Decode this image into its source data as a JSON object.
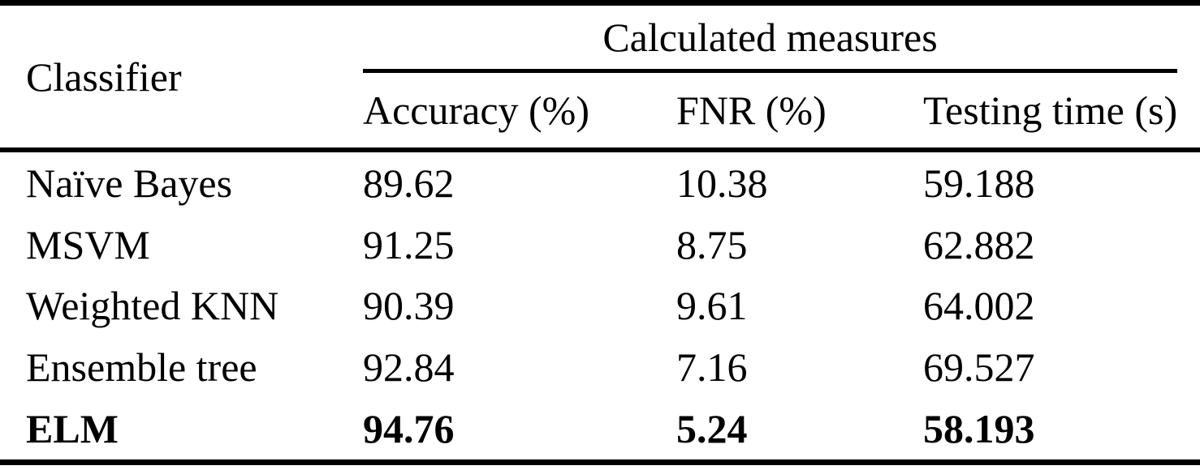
{
  "table": {
    "header": {
      "classifier_label": "Classifier",
      "group_label": "Calculated measures",
      "columns": [
        "Accuracy (%)",
        "FNR (%)",
        "Testing time (s)"
      ]
    },
    "rows": [
      {
        "classifier": "Naïve Bayes",
        "accuracy": "89.62",
        "fnr": "10.38",
        "testing_time": "59.188",
        "emphasized": false
      },
      {
        "classifier": "MSVM",
        "accuracy": "91.25",
        "fnr": "8.75",
        "testing_time": "62.882",
        "emphasized": false
      },
      {
        "classifier": "Weighted KNN",
        "accuracy": "90.39",
        "fnr": "9.61",
        "testing_time": "64.002",
        "emphasized": false
      },
      {
        "classifier": "Ensemble tree",
        "accuracy": "92.84",
        "fnr": "7.16",
        "testing_time": "69.527",
        "emphasized": false
      },
      {
        "classifier": "ELM",
        "accuracy": "94.76",
        "fnr": "5.24",
        "testing_time": "58.193",
        "emphasized": true
      }
    ]
  },
  "colors": {
    "text": "#000000",
    "background": "#ffffff",
    "rule": "#000000"
  }
}
